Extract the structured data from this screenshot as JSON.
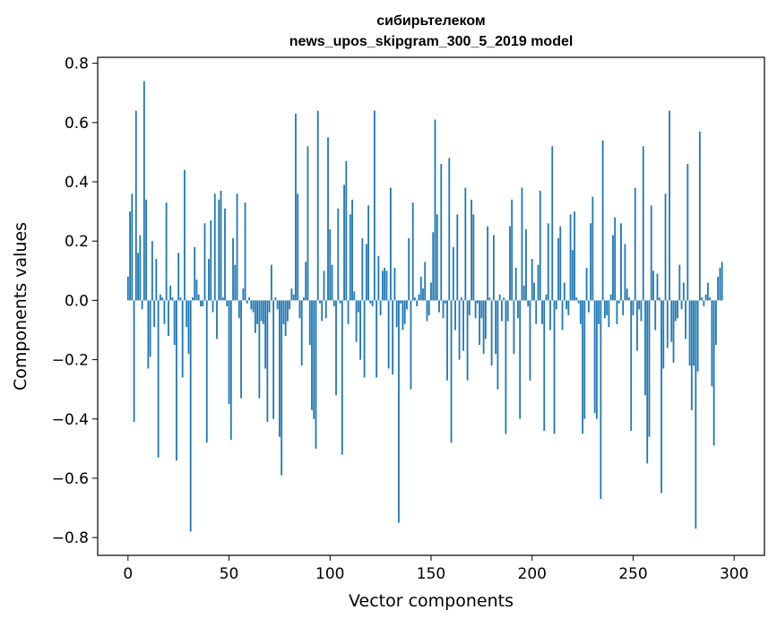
{
  "chart_data": {
    "type": "bar",
    "title_line1": "сибирьтелеком",
    "title_line2": "news_upos_skipgram_300_5_2019 model",
    "xlabel": "Vector components",
    "ylabel": "Components values",
    "xlim": [
      -15,
      315
    ],
    "ylim": [
      -0.86,
      0.82
    ],
    "xticks": [
      0,
      50,
      100,
      150,
      200,
      250,
      300
    ],
    "yticks": [
      -0.8,
      -0.6,
      -0.4,
      -0.2,
      0.0,
      0.2,
      0.4,
      0.6,
      0.8
    ],
    "ytick_labels": [
      "−0.8",
      "−0.6",
      "−0.4",
      "−0.2",
      "0.0",
      "0.2",
      "0.4",
      "0.6",
      "0.8"
    ],
    "xtick_labels": [
      "0",
      "50",
      "100",
      "150",
      "200",
      "250",
      "300"
    ],
    "grid": false,
    "bar_color": "#1f77b4",
    "values": [
      0.08,
      0.3,
      0.36,
      -0.41,
      0.64,
      0.16,
      0.22,
      -0.03,
      0.74,
      0.34,
      -0.23,
      -0.19,
      0.2,
      -0.09,
      0.14,
      -0.53,
      0.02,
      0.01,
      -0.08,
      0.33,
      -0.12,
      0.05,
      0.01,
      -0.15,
      -0.54,
      0.16,
      0.01,
      -0.26,
      0.44,
      -0.09,
      -0.18,
      -0.78,
      0.01,
      0.18,
      0.07,
      0.02,
      -0.02,
      -0.02,
      0.26,
      -0.48,
      0.14,
      0.27,
      -0.04,
      0.36,
      -0.13,
      0.34,
      0.37,
      0.01,
      0.31,
      -0.02,
      -0.35,
      -0.47,
      0.21,
      0.12,
      0.36,
      -0.06,
      -0.33,
      0.04,
      0.33,
      -0.01,
      0.01,
      -0.03,
      -0.04,
      -0.11,
      -0.08,
      -0.33,
      -0.07,
      -0.08,
      -0.23,
      -0.41,
      -0.04,
      0.12,
      -0.4,
      0.01,
      -0.03,
      -0.46,
      -0.59,
      -0.08,
      -0.12,
      -0.07,
      -0.03,
      0.04,
      0.02,
      0.63,
      0.36,
      -0.06,
      -0.22,
      0.01,
      0.13,
      0.52,
      -0.15,
      -0.37,
      -0.4,
      -0.5,
      0.64,
      -0.01,
      -0.07,
      0.1,
      -0.06,
      0.55,
      0.24,
      0.12,
      -0.02,
      -0.32,
      0.31,
      -0.01,
      -0.52,
      0.39,
      0.47,
      -0.08,
      0.29,
      0.34,
      0.03,
      -0.14,
      -0.04,
      -0.2,
      0.21,
      -0.26,
      0.19,
      0.32,
      -0.01,
      -0.02,
      0.64,
      -0.26,
      0.15,
      -0.05,
      0.1,
      0.11,
      0.1,
      -0.23,
      0.38,
      -0.25,
      0.11,
      -0.09,
      -0.75,
      -0.01,
      -0.1,
      -0.08,
      -0.03,
      0.21,
      -0.3,
      0.33,
      0.01,
      -0.02,
      0.02,
      0.08,
      0.04,
      0.13,
      -0.07,
      -0.05,
      0.06,
      0.23,
      0.61,
      0.29,
      -0.04,
      0.46,
      -0.06,
      -0.01,
      -0.27,
      0.48,
      -0.48,
      0.18,
      -0.1,
      0.29,
      -0.2,
      0.01,
      -0.17,
      0.38,
      -0.27,
      -0.05,
      0.34,
      0.29,
      -0.06,
      -0.01,
      -0.15,
      -0.06,
      -0.18,
      -0.13,
      0.25,
      0.01,
      -0.22,
      0.22,
      -0.18,
      -0.3,
      0.02,
      -0.07,
      0.01,
      -0.45,
      -0.07,
      0.25,
      0.34,
      -0.18,
      0.11,
      -0.06,
      -0.4,
      0.38,
      0.05,
      0.24,
      -0.02,
      -0.27,
      0.14,
      0.06,
      -0.08,
      0.12,
      0.37,
      -0.08,
      -0.44,
      0.02,
      0.26,
      -0.1,
      0.52,
      -0.45,
      -0.03,
      0.21,
      0.25,
      -0.1,
      0.06,
      -0.03,
      -0.05,
      0.29,
      0.17,
      0.3,
      0.01,
      -0.01,
      -0.08,
      -0.45,
      -0.4,
      0.11,
      -0.04,
      0.26,
      0.35,
      -0.38,
      -0.4,
      -0.08,
      -0.67,
      0.54,
      -0.06,
      -0.05,
      -0.09,
      0.02,
      0.22,
      0.28,
      -0.08,
      -0.01,
      0.26,
      -0.05,
      0.19,
      0.04,
      0.01,
      -0.44,
      -0.05,
      0.38,
      -0.17,
      -0.03,
      -0.07,
      0.52,
      -0.32,
      -0.55,
      -0.46,
      0.32,
      0.1,
      -0.1,
      0.09,
      0.01,
      -0.65,
      -0.23,
      0.36,
      -0.16,
      0.64,
      -0.14,
      -0.21,
      -0.07,
      -0.06,
      0.12,
      -0.03,
      0.06,
      -0.13,
      0.46,
      -0.22,
      -0.37,
      -0.22,
      -0.77,
      -0.24,
      0.57,
      0.01,
      -0.02,
      0.02,
      0.06,
      0.01,
      -0.29,
      -0.49,
      -0.15,
      0.08,
      0.11,
      0.13
    ]
  }
}
